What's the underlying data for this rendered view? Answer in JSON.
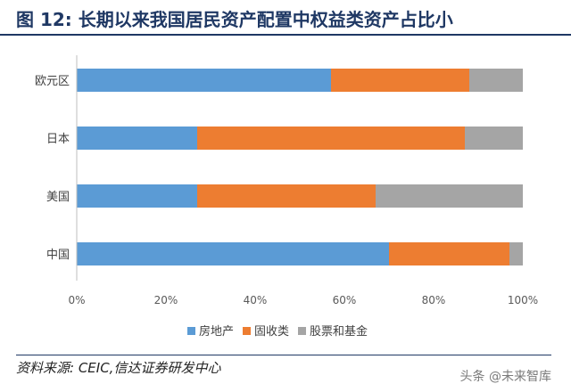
{
  "title": "图  12:  长期以来我国居民资产配置中权益类资产占比小",
  "source": "资料来源: CEIC,信达证券研发中心",
  "watermark": "头条 @未来智库",
  "colors": {
    "title": "#1f3864",
    "real_estate": "#5b9bd5",
    "fixed_income": "#ed7d31",
    "equity_fund": "#a5a5a5"
  },
  "chart_data": {
    "type": "bar",
    "orientation": "horizontal",
    "stacked": true,
    "categories": [
      "欧元区",
      "日本",
      "美国",
      "中国"
    ],
    "series": [
      {
        "name": "房地产",
        "color": "#5b9bd5",
        "values": [
          57,
          27,
          27,
          70
        ]
      },
      {
        "name": "固收类",
        "color": "#ed7d31",
        "values": [
          31,
          60,
          40,
          27
        ]
      },
      {
        "name": "股票和基金",
        "color": "#a5a5a5",
        "values": [
          12,
          13,
          33,
          3
        ]
      }
    ],
    "x_ticks": [
      "0%",
      "20%",
      "40%",
      "60%",
      "80%",
      "100%"
    ],
    "xlim": [
      0,
      100
    ],
    "legend_position": "bottom",
    "grid": false
  }
}
